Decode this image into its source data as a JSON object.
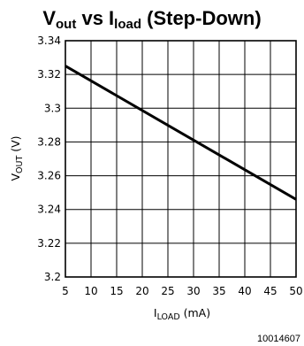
{
  "chart_data": {
    "type": "line",
    "title": {
      "main": "V",
      "sub": "out",
      "mid": " vs I",
      "sub2": "load",
      "end": " (Step-Down)"
    },
    "xlabel": {
      "main": "I",
      "sub": "LOAD",
      "units": " (mA)"
    },
    "ylabel": {
      "main": "V",
      "sub": "OUT",
      "units": " (V)"
    },
    "xlim": [
      5,
      50
    ],
    "ylim": [
      3.2,
      3.34
    ],
    "xticks": [
      5,
      10,
      15,
      20,
      25,
      30,
      35,
      40,
      45,
      50
    ],
    "xtick_labels": [
      "5",
      "10",
      "15",
      "20",
      "25",
      "30",
      "35",
      "40",
      "45",
      "50"
    ],
    "yticks": [
      3.2,
      3.22,
      3.24,
      3.26,
      3.28,
      3.3,
      3.32,
      3.34
    ],
    "ytick_labels": [
      "3.2",
      "3.22",
      "3.24",
      "3.26",
      "3.28",
      "3.3",
      "3.32",
      "3.34"
    ],
    "grid": true,
    "series": [
      {
        "x": [
          5,
          50
        ],
        "y": [
          3.325,
          3.246
        ]
      }
    ],
    "figure_id": "10014607",
    "colors": {
      "line": "#000000",
      "grid": "#000000",
      "background": "#ffffff"
    }
  }
}
